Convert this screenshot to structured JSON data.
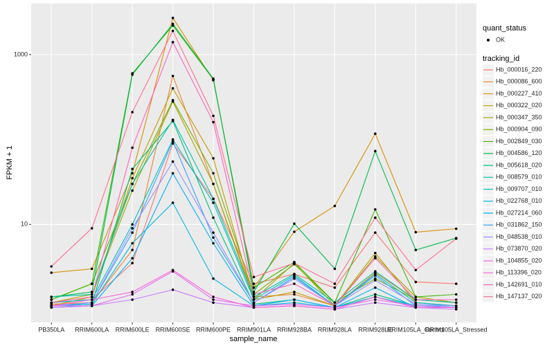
{
  "chart_data": {
    "type": "line",
    "x_label": "sample_name",
    "y_label": "FPKM + 1",
    "y_scale": "log",
    "grid": true,
    "legend_position": "right",
    "marker_legend": {
      "title": "quant_status",
      "label": "OK",
      "color": "#000000"
    },
    "legend_title": "tracking_id",
    "ylim": [
      0.7,
      4000
    ],
    "yticks": [
      10,
      1000
    ],
    "categories": [
      "PB350LA",
      "RRIM600LA",
      "RRIM600LE",
      "RRIM600SE",
      "RRIM600PE",
      "RRIM901LA",
      "RRIM928BA",
      "RRIM928LA",
      "RRIM928LE",
      "RRIM105LA_Control",
      "RRIM105LA_Stressed"
    ],
    "series": [
      {
        "name": "Hb_000016_220",
        "color": "#F8766D",
        "values": [
          1.2,
          1.3,
          3.5,
          90,
          20,
          2.0,
          2.6,
          1.8,
          8,
          2.1,
          2.0
        ]
      },
      {
        "name": "Hb_000086_600",
        "color": "#EA8331",
        "values": [
          1.15,
          1.2,
          5,
          560,
          30,
          1.4,
          1.5,
          1.1,
          2.7,
          1.3,
          1.2
        ]
      },
      {
        "name": "Hb_000227_410",
        "color": "#D89000",
        "values": [
          2.7,
          3.0,
          40,
          2700,
          500,
          1.8,
          8.2,
          16.5,
          117,
          8.1,
          8.9
        ]
      },
      {
        "name": "Hb_000322_020",
        "color": "#C09B00",
        "values": [
          1.1,
          1.4,
          35,
          400,
          60,
          1.3,
          1.6,
          1.1,
          4.6,
          1.2,
          1.1
        ]
      },
      {
        "name": "Hb_000347_350",
        "color": "#A3A500",
        "values": [
          1.2,
          1.5,
          25,
          280,
          30,
          1.3,
          3.5,
          1.1,
          4.2,
          1.4,
          1.2
        ]
      },
      {
        "name": "Hb_000904_090",
        "color": "#7CAE00",
        "values": [
          1.3,
          2.0,
          30,
          290,
          40,
          1.5,
          3.4,
          1.2,
          2.3,
          1.3,
          1.2
        ]
      },
      {
        "name": "Hb_002849_030",
        "color": "#39B600",
        "values": [
          1.3,
          2.0,
          600,
          2200,
          510,
          1.8,
          3.6,
          1.2,
          15,
          1.4,
          1.5
        ]
      },
      {
        "name": "Hb_004586_120",
        "color": "#00BB4E",
        "values": [
          1.4,
          1.6,
          580,
          2300,
          520,
          1.6,
          10.2,
          3.0,
          73,
          5.0,
          6.9
        ]
      },
      {
        "name": "Hb_005618_020",
        "color": "#00BF7D",
        "values": [
          1.1,
          1.15,
          45,
          165,
          12,
          1.15,
          1.3,
          1.05,
          1.5,
          1.1,
          1.05
        ]
      },
      {
        "name": "Hb_008579_010",
        "color": "#00C1A3",
        "values": [
          1.4,
          1.5,
          30,
          170,
          20,
          1.4,
          2.6,
          1.2,
          2.8,
          1.3,
          1.2
        ]
      },
      {
        "name": "Hb_009707_010",
        "color": "#00BFC4",
        "values": [
          1.2,
          1.3,
          10,
          100,
          18,
          1.3,
          2.5,
          1.1,
          2.6,
          1.2,
          1.1
        ]
      },
      {
        "name": "Hb_022768_010",
        "color": "#00BAE0",
        "values": [
          1.1,
          1.15,
          6,
          18,
          2.3,
          1.1,
          1.2,
          1.05,
          1.4,
          1.1,
          1.05
        ]
      },
      {
        "name": "Hb_027214_060",
        "color": "#00B0F6",
        "values": [
          1.05,
          1.1,
          4,
          40,
          6,
          1.1,
          1.3,
          1.05,
          1.8,
          1.05,
          1.05
        ]
      },
      {
        "name": "Hb_031862_150",
        "color": "#35A2FF",
        "values": [
          1.1,
          1.2,
          8,
          95,
          7,
          1.2,
          2.4,
          1.1,
          2.5,
          1.1,
          1.1
        ]
      },
      {
        "name": "Hb_048538_010",
        "color": "#9590FF",
        "values": [
          1.1,
          1.2,
          9,
          55,
          8,
          1.2,
          2.3,
          1.1,
          2.2,
          1.15,
          1.1
        ]
      },
      {
        "name": "Hb_073870_020",
        "color": "#C77CFF",
        "values": [
          1.05,
          1.1,
          1.3,
          1.7,
          1.2,
          1.05,
          1.1,
          1.0,
          1.2,
          1.05,
          1.0
        ]
      },
      {
        "name": "Hb_104855_020",
        "color": "#E76BF3",
        "values": [
          1.1,
          1.1,
          1.5,
          2.8,
          1.3,
          1.1,
          1.15,
          1.05,
          1.3,
          1.1,
          1.05
        ]
      },
      {
        "name": "Hb_113396_020",
        "color": "#FA62DB",
        "values": [
          1.1,
          1.3,
          1.6,
          2.9,
          1.4,
          1.05,
          1.1,
          1.0,
          1.4,
          1.05,
          1.05
        ]
      },
      {
        "name": "Hb_142691_010",
        "color": "#FF62BC",
        "values": [
          1.2,
          1.4,
          80,
          1400,
          160,
          1.5,
          2.0,
          1.1,
          4.0,
          1.3,
          1.3
        ]
      },
      {
        "name": "Hb_147137_020",
        "color": "#FF6C91",
        "values": [
          3.2,
          9.0,
          210,
          1900,
          190,
          2.4,
          3.5,
          2.0,
          12,
          2.9,
          6.8
        ]
      }
    ]
  }
}
